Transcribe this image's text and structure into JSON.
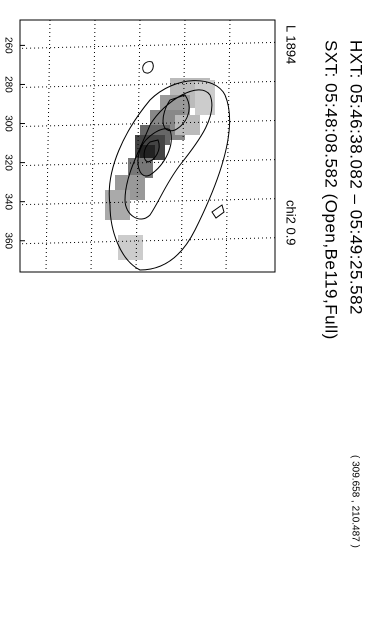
{
  "chart_data": {
    "type": "contour",
    "title": "HXT: 05:46:38.082 – 05:49:25.582",
    "coords": "( 309.658 , 210.487 )",
    "subtitle": "SXT: 05:48:08.582 (Open,Be119,Full)",
    "label_left": "L 1894",
    "label_right": "chi2 0.9",
    "xlim": [
      247,
      376
    ],
    "xticks": [
      260,
      280,
      300,
      320,
      340,
      360
    ],
    "grid": true
  }
}
